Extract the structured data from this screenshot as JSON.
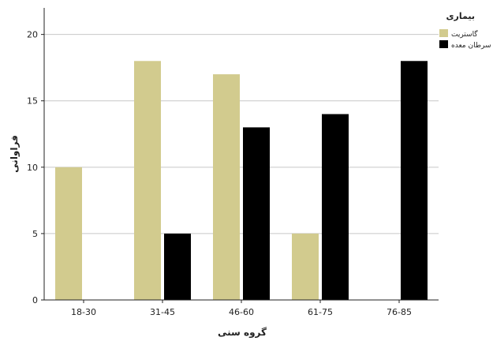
{
  "chart_data": {
    "type": "bar",
    "title": "",
    "xlabel": "گروه سنی",
    "ylabel": "فراوانی",
    "categories": [
      "18-30",
      "31-45",
      "46-60",
      "61-75",
      "76-85"
    ],
    "series": [
      {
        "name": "گاستریت",
        "color": "#d2cb8e",
        "values": [
          10,
          18,
          17,
          5,
          0
        ]
      },
      {
        "name": "سرطان معده",
        "color": "#000000",
        "values": [
          0,
          5,
          13,
          14,
          18
        ]
      }
    ],
    "ylim": [
      0,
      22
    ],
    "yticks": [
      0,
      5,
      10,
      15,
      20
    ],
    "grid": true,
    "legend": {
      "title": "بیماری",
      "placement": "top-right"
    }
  }
}
